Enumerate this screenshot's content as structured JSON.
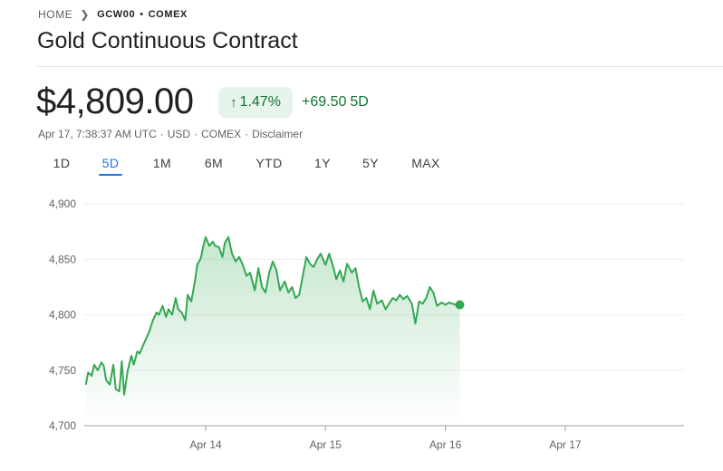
{
  "breadcrumb": {
    "home": "HOME",
    "ticker": "GCW00",
    "separator": "•",
    "exchange": "COMEX"
  },
  "title": "Gold Continuous Contract",
  "quote": {
    "price": "$4,809.00",
    "change_percent": "1.47%",
    "change_abs": "+69.50",
    "change_period": "5D",
    "timestamp": "Apr 17, 7:38:37 AM UTC",
    "currency": "USD",
    "exchange": "COMEX",
    "disclaimer": "Disclaimer",
    "meta_separator": "·"
  },
  "colors": {
    "up": "#137333",
    "line": "#34a853",
    "accent": "#1a73e8"
  },
  "range_tabs": [
    "1D",
    "5D",
    "1M",
    "6M",
    "YTD",
    "1Y",
    "5Y",
    "MAX"
  ],
  "selected_range": "5D",
  "chart_data": {
    "type": "area",
    "x_ticks": [
      "Apr 14",
      "Apr 15",
      "Apr 16",
      "Apr 17"
    ],
    "y_ticks": [
      "4,700",
      "4,750",
      "4,800",
      "4,850",
      "4,900"
    ],
    "ylim": [
      4700,
      4900
    ],
    "grid": true,
    "series": [
      {
        "x": [
          -1.0,
          -0.98,
          -0.95,
          -0.93,
          -0.9,
          -0.87,
          -0.85,
          -0.83,
          -0.8,
          -0.77,
          -0.75,
          -0.72,
          -0.7,
          -0.68,
          -0.65,
          -0.62,
          -0.6,
          -0.57,
          -0.55,
          -0.52,
          -0.49,
          -0.47,
          -0.44,
          -0.41,
          -0.39,
          -0.36,
          -0.33,
          -0.31,
          -0.28,
          -0.25,
          -0.23,
          -0.2,
          -0.17,
          -0.15,
          -0.12,
          -0.09,
          -0.07,
          -0.04,
          -0.02,
          0.0,
          0.03,
          0.06,
          0.08,
          0.11,
          0.14,
          0.16,
          0.19,
          0.22,
          0.25,
          0.28,
          0.31,
          0.34,
          0.37,
          0.41,
          0.44,
          0.47,
          0.5,
          0.53,
          0.56,
          0.59,
          0.62,
          0.66,
          0.69,
          0.72,
          0.75,
          0.78,
          0.81,
          0.84,
          0.87,
          0.9,
          0.93,
          0.96,
          1.0,
          1.03,
          1.06,
          1.09,
          1.12,
          1.15,
          1.18,
          1.22,
          1.25,
          1.28,
          1.31,
          1.34,
          1.37,
          1.4,
          1.43,
          1.47,
          1.5,
          1.53,
          1.56,
          1.59,
          1.62,
          1.65,
          1.68,
          1.72,
          1.75,
          1.78,
          1.81,
          1.84,
          1.87,
          1.9,
          1.93,
          1.97,
          2.0,
          2.03,
          2.06,
          2.09,
          2.12
        ],
        "values": [
          4737,
          4748,
          4745,
          4755,
          4750,
          4757,
          4754,
          4741,
          4737,
          4755,
          4733,
          4731,
          4758,
          4728,
          4750,
          4763,
          4755,
          4767,
          4765,
          4773,
          4780,
          4785,
          4795,
          4802,
          4800,
          4808,
          4798,
          4805,
          4800,
          4815,
          4805,
          4802,
          4795,
          4818,
          4812,
          4830,
          4845,
          4851,
          4862,
          4870,
          4862,
          4866,
          4862,
          4861,
          4852,
          4865,
          4870,
          4855,
          4848,
          4852,
          4845,
          4835,
          4838,
          4822,
          4842,
          4825,
          4820,
          4838,
          4848,
          4840,
          4822,
          4830,
          4820,
          4825,
          4815,
          4818,
          4835,
          4852,
          4846,
          4843,
          4850,
          4855,
          4845,
          4855,
          4845,
          4832,
          4840,
          4830,
          4846,
          4838,
          4842,
          4825,
          4812,
          4815,
          4805,
          4822,
          4810,
          4813,
          4805,
          4810,
          4815,
          4813,
          4818,
          4814,
          4817,
          4810,
          4792,
          4812,
          4810,
          4815,
          4825,
          4820,
          4808,
          4811,
          4809,
          4811,
          4810,
          4809,
          4809
        ]
      }
    ]
  }
}
